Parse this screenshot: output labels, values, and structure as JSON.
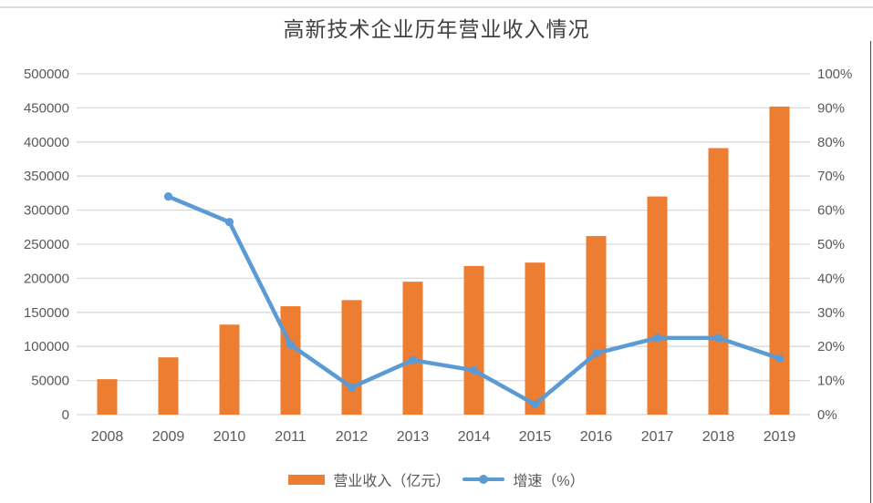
{
  "chart_data": {
    "type": "combo",
    "title": "高新技术企业历年营业收入情况",
    "categories": [
      "2008",
      "2009",
      "2010",
      "2011",
      "2012",
      "2013",
      "2014",
      "2015",
      "2016",
      "2017",
      "2018",
      "2019"
    ],
    "series": [
      {
        "name": "营业收入（亿元）",
        "type": "bar",
        "axis": "left",
        "color": "#ED7D31",
        "values": [
          52000,
          84000,
          132000,
          159000,
          168000,
          195000,
          218000,
          223000,
          262000,
          320000,
          391000,
          452000
        ]
      },
      {
        "name": "增速（%）",
        "type": "line",
        "axis": "right",
        "color": "#5B9BD5",
        "values": [
          null,
          64,
          56.5,
          20.5,
          8,
          16,
          13,
          3,
          18,
          22.5,
          22.5,
          16.5
        ]
      }
    ],
    "left_axis": {
      "min": 0,
      "max": 500000,
      "step": 50000,
      "tick_labels": [
        "0",
        "50000",
        "100000",
        "150000",
        "200000",
        "250000",
        "300000",
        "350000",
        "400000",
        "450000",
        "500000"
      ]
    },
    "right_axis": {
      "min": 0,
      "max": 100,
      "step": 10,
      "tick_labels": [
        "0%",
        "10%",
        "20%",
        "30%",
        "40%",
        "50%",
        "60%",
        "70%",
        "80%",
        "90%",
        "100%"
      ]
    },
    "grid": true,
    "legend_position": "bottom",
    "colors": {
      "grid": "#D9D9D9",
      "axis_text": "#595959",
      "title_text": "#404040"
    }
  }
}
